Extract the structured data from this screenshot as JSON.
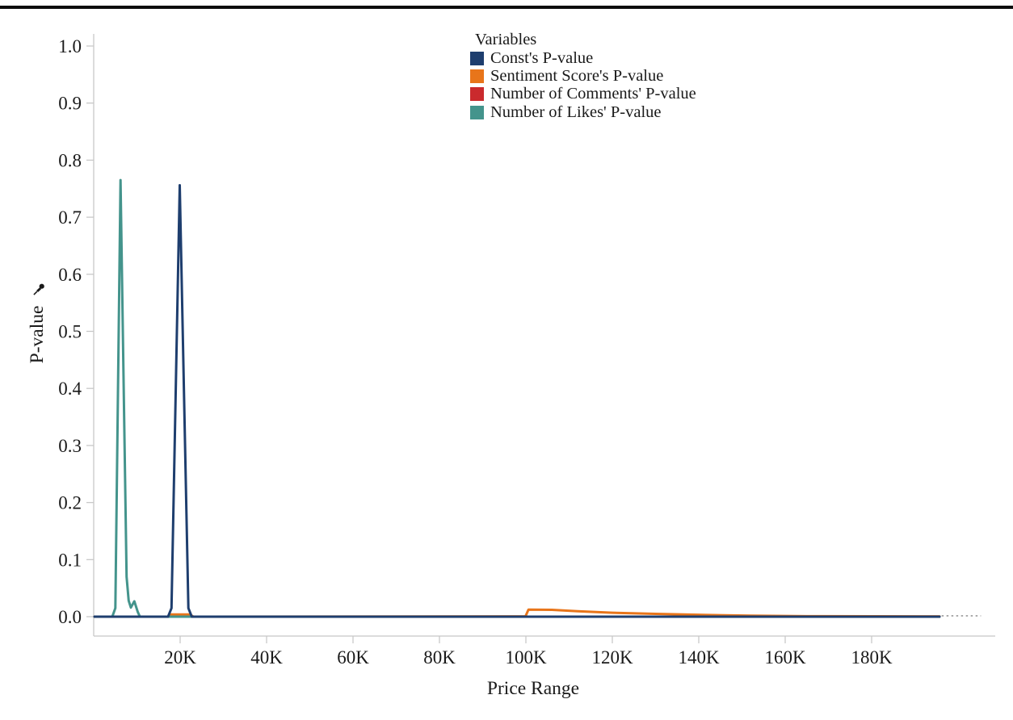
{
  "page": {
    "background": "#ffffff",
    "top_rule_color": "#0d0d0d"
  },
  "chart_data": {
    "type": "line",
    "title": "",
    "xlabel": "Price Range",
    "ylabel": "P-value",
    "ylabel_icon": "pushpin",
    "legend_title": "Variables",
    "legend_position": "top-center",
    "grid": false,
    "axis_color": "#c8c8c8",
    "text_color": "#1a1a1a",
    "xlim_k": [
      0,
      208.6
    ],
    "ylim": [
      -0.034,
      1.02
    ],
    "x_tick_values_k": [
      20,
      40,
      60,
      80,
      100,
      120,
      140,
      160,
      180
    ],
    "x_tick_labels": [
      "20K",
      "40K",
      "60K",
      "80K",
      "100K",
      "120K",
      "140K",
      "160K",
      "180K"
    ],
    "y_tick_values": [
      0,
      0.1,
      0.2,
      0.3,
      0.4,
      0.5,
      0.6,
      0.7,
      0.8,
      0.9,
      1
    ],
    "y_tick_labels": [
      "0.0",
      "0.1",
      "0.2",
      "0.3",
      "0.4",
      "0.5",
      "0.6",
      "0.7",
      "0.8",
      "0.9",
      "1.0"
    ],
    "series": [
      {
        "name": "Const's P-value",
        "color": "#1e3e6e",
        "points": [
          [
            0.2,
            0
          ],
          [
            17.2,
            0
          ],
          [
            18.0,
            0.015
          ],
          [
            19.9,
            0.756
          ],
          [
            21.9,
            0.015
          ],
          [
            22.7,
            0
          ],
          [
            195.7,
            0
          ]
        ]
      },
      {
        "name": "Sentiment Score's P-value",
        "color": "#e8751a",
        "points": [
          [
            0.2,
            0
          ],
          [
            17.1,
            0
          ],
          [
            17.9,
            0.004
          ],
          [
            22.2,
            0.004
          ],
          [
            23.1,
            0
          ],
          [
            99.9,
            0.0005
          ],
          [
            100.6,
            0.0125
          ],
          [
            106,
            0.012
          ],
          [
            112,
            0.0095
          ],
          [
            120,
            0.007
          ],
          [
            130,
            0.005
          ],
          [
            142,
            0.003
          ],
          [
            152,
            0.0017
          ],
          [
            165,
            0.0009
          ],
          [
            195.7,
            0.0006
          ]
        ]
      },
      {
        "name": "Number of Comments' P-value",
        "color": "#ca2a2d",
        "points": [
          [
            0.2,
            0
          ],
          [
            195.7,
            0
          ]
        ]
      },
      {
        "name": "Number of Likes' P-value",
        "color": "#44948c",
        "points": [
          [
            0.2,
            0
          ],
          [
            4.3,
            0
          ],
          [
            5.0,
            0.015
          ],
          [
            6.2,
            0.765
          ],
          [
            7.6,
            0.07
          ],
          [
            8.1,
            0.028
          ],
          [
            8.6,
            0.016
          ],
          [
            9.4,
            0.027
          ],
          [
            10.2,
            0.008
          ],
          [
            10.7,
            0
          ],
          [
            195.7,
            0
          ]
        ]
      }
    ],
    "draw_order": [
      1,
      2,
      3,
      0
    ],
    "zero_line_extension": {
      "style": "dotted",
      "color": "#9a9a9a",
      "x_from_k": 196.2,
      "x_to_k": 205.3,
      "y": 0.0015
    }
  }
}
